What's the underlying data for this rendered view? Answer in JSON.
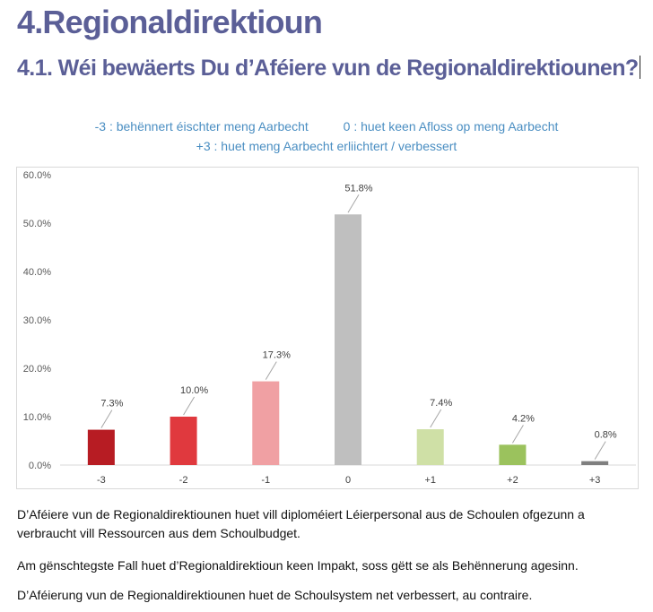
{
  "heading": "4.Regionaldirektioun",
  "subheading": "4.1. Wéi bewäerts Du d’Aféiere vun de Regionaldirektiounen?",
  "legend_lines": [
    "-3 : behënnert éischter meng Aarbecht          0 : huet keen Afloss op meng Aarbecht",
    "+3 : huet meng Aarbecht erliichtert / verbessert"
  ],
  "chart_data": {
    "type": "bar",
    "categories": [
      "-3",
      "-2",
      "-1",
      "0",
      "+1",
      "+2",
      "+3"
    ],
    "values": [
      7.3,
      10.0,
      17.3,
      51.8,
      7.4,
      4.2,
      0.8
    ],
    "data_labels": [
      "7.3%",
      "10.0%",
      "17.3%",
      "51.8%",
      "7.4%",
      "4.2%",
      "0.8%"
    ],
    "colors": [
      "#b71c23",
      "#e0393e",
      "#f0a0a3",
      "#bfbfbf",
      "#cfe0a6",
      "#9bc25d",
      "#7f7f7f"
    ],
    "ylim": [
      0,
      60
    ],
    "yticks": [
      "0.0%",
      "10.0%",
      "20.0%",
      "30.0%",
      "40.0%",
      "50.0%",
      "60.0%"
    ],
    "title": "",
    "xlabel": "",
    "ylabel": "",
    "grid": false
  },
  "paragraphs": [
    "D’Aféiere vun de Regionaldirektiounen huet vill diploméiert Léierpersonal aus de Schoulen ofgezunn a verbraucht vill Ressourcen aus dem Schoulbudget.",
    "Am gënschtegste Fall huet d’Regionaldirektioun keen Impakt, soss gëtt se als Behënnerung agesinn.",
    "D’Aféierung vun de Regionaldirektiounen huet de Schoulsystem net verbessert, au contraire."
  ]
}
